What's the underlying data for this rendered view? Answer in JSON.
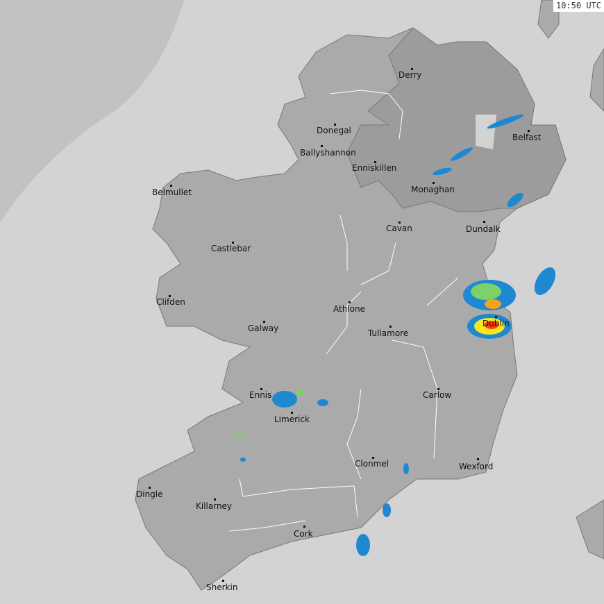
{
  "timestamp": "10:50 UTC",
  "colors": {
    "sea": "#d3d3d3",
    "out_of_range": "#c2c2c2",
    "land_roi": "#aaaaaa",
    "land_ni": "#9c9c9c",
    "rain_light": "#1e88d0",
    "rain_moderate": "#f6e81c",
    "rain_heavy": "#ff3a10"
  },
  "cities": [
    {
      "name": "Derry"
    },
    {
      "name": "Donegal"
    },
    {
      "name": "Ballyshannon"
    },
    {
      "name": "Enniskillen"
    },
    {
      "name": "Belfast"
    },
    {
      "name": "Monaghan"
    },
    {
      "name": "Belmullet"
    },
    {
      "name": "Cavan"
    },
    {
      "name": "Dundalk"
    },
    {
      "name": "Castlebar"
    },
    {
      "name": "Clifden"
    },
    {
      "name": "Athlone"
    },
    {
      "name": "Dublin"
    },
    {
      "name": "Galway"
    },
    {
      "name": "Tullamore"
    },
    {
      "name": "Ennis"
    },
    {
      "name": "Carlow"
    },
    {
      "name": "Limerick"
    },
    {
      "name": "Clonmel"
    },
    {
      "name": "Wexford"
    },
    {
      "name": "Dingle"
    },
    {
      "name": "Killarney"
    },
    {
      "name": "Cork"
    },
    {
      "name": "Sherkin"
    }
  ]
}
